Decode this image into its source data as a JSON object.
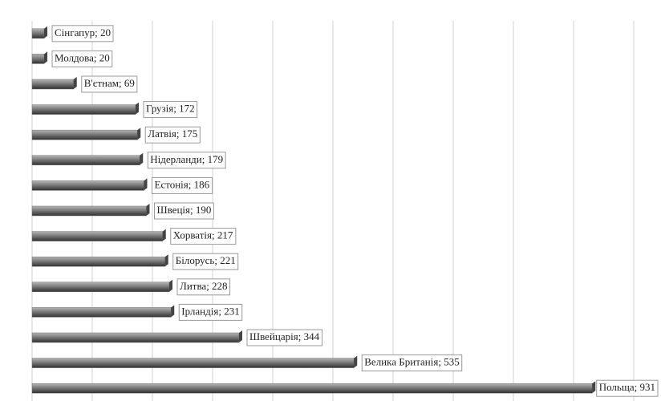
{
  "chart_data": {
    "type": "bar",
    "orientation": "horizontal",
    "values": [
      20,
      20,
      69,
      172,
      175,
      179,
      186,
      190,
      217,
      221,
      228,
      231,
      344,
      535,
      931
    ],
    "value_labels": [
      "Сінгапур; 20",
      "Молдова; 20",
      "В'єтнам; 69",
      "Грузія; 172",
      "Латвія; 175",
      "Нідерланди; 179",
      "Естонія; 186",
      "Швеція; 190",
      "Хорватія; 217",
      "Білорусь; 221",
      "Литва; 228",
      "Ірландія; 231",
      "Швейцарія; 344",
      "Велика Британія; 535",
      "Польща; 931"
    ],
    "color": "#6e6e6e",
    "xlim": [
      0,
      1000
    ],
    "xticks": [
      0,
      100,
      200,
      300,
      400,
      500,
      600,
      700,
      800,
      900,
      1000
    ],
    "grid": true
  }
}
